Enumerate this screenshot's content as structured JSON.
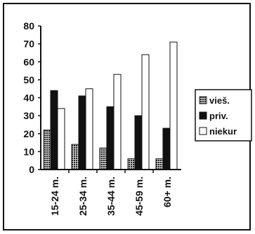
{
  "chart_data": {
    "type": "bar",
    "categories": [
      "15-24 m.",
      "25-34 m.",
      "35-44 m.",
      "45-59 m.",
      "60+ m."
    ],
    "series": [
      {
        "name": "vieš.",
        "values": [
          22,
          14,
          12,
          6,
          6
        ],
        "color": "#555555",
        "pattern": "dots"
      },
      {
        "name": "priv.",
        "values": [
          44,
          41,
          35,
          30,
          23
        ],
        "color": "#111111"
      },
      {
        "name": "niekur",
        "values": [
          34,
          45,
          53,
          64,
          71
        ],
        "color": "#ffffff"
      }
    ],
    "yticks": [
      "0",
      "10",
      "20",
      "30",
      "40",
      "50",
      "60",
      "70",
      "80"
    ],
    "ylim": [
      0,
      80
    ],
    "legend_position": "right",
    "grid": false
  }
}
